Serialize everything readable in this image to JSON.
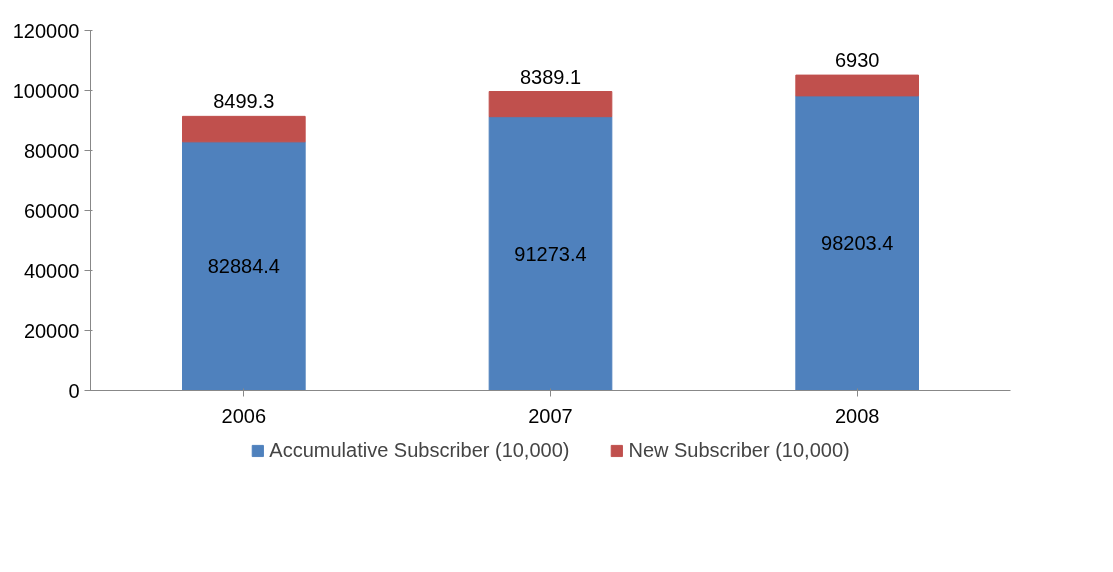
{
  "chart_data": {
    "type": "bar",
    "stacked": true,
    "categories": [
      "2006",
      "2007",
      "2008"
    ],
    "series": [
      {
        "name": "Accumulative Subscriber (10,000)",
        "color": "#4f81bd",
        "values": [
          82884.4,
          91273.4,
          98203.4
        ]
      },
      {
        "name": "New Subscriber (10,000)",
        "color": "#c0504d",
        "values": [
          8499.3,
          8389.1,
          6930
        ]
      }
    ],
    "ylim": [
      0,
      120000
    ],
    "yticks": [
      0,
      20000,
      40000,
      60000,
      80000,
      100000,
      120000
    ],
    "data_labels": true,
    "grid": false,
    "legend": "bottom"
  }
}
